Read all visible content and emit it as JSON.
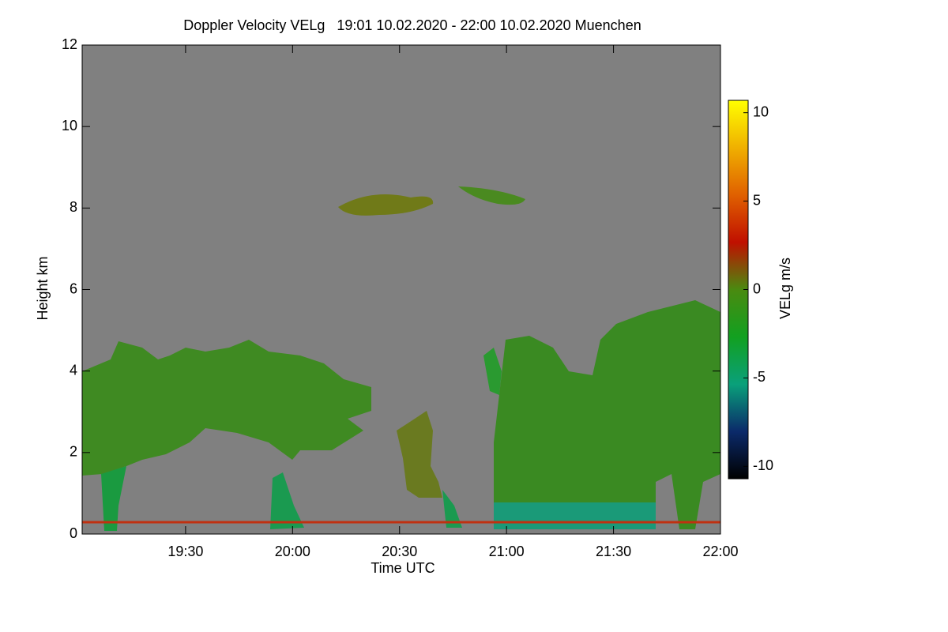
{
  "chart_data": {
    "type": "heatmap",
    "title": "Doppler Velocity VELg   19:01 10.02.2020 - 22:00 10.02.2020 Muenchen",
    "xlabel": "Time UTC",
    "ylabel": "Height km",
    "xlim": [
      "19:01",
      "22:00"
    ],
    "xticks": [
      "19:30",
      "20:00",
      "20:30",
      "21:00",
      "21:30",
      "22:00"
    ],
    "ylim": [
      0,
      12
    ],
    "yticks": [
      0,
      2,
      4,
      6,
      8,
      10,
      12
    ],
    "colorbar_label": "VELg m/s",
    "clim": [
      -10.7,
      10.7
    ],
    "cticks": [
      -10,
      -5,
      0,
      5,
      10
    ],
    "colormap": [
      "#000000",
      "#0b2a6a",
      "#0aa07a",
      "#12a020",
      "#4a8a10",
      "#c01000",
      "#e06000",
      "#f0b000",
      "#ffff00"
    ],
    "background": "#808080"
  }
}
